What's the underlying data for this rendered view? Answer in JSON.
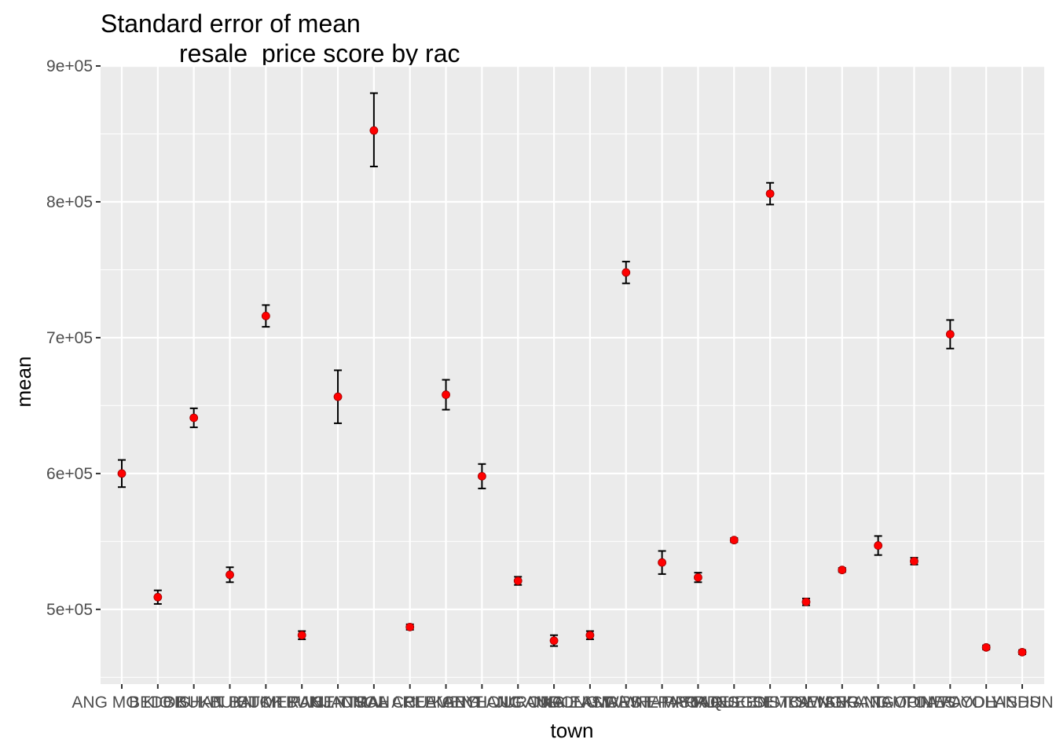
{
  "chart_data": {
    "type": "scatter",
    "title_line1": "Standard error of mean",
    "title_line2": "resale_price score by rac",
    "xlabel": "town",
    "ylabel": "mean",
    "ylim": [
      445000,
      900000
    ],
    "y_ticks": [
      "5e+05",
      "6e+05",
      "7e+05",
      "8e+05",
      "9e+05"
    ],
    "y_tick_values": [
      500000,
      600000,
      700000,
      800000,
      900000
    ],
    "grid": true,
    "point_color": "#ff0000",
    "errorbar_color": "#000000",
    "panel_background": "#ebebeb",
    "points": [
      {
        "town": "ANG MO KIO",
        "mean": 600000,
        "lo": 590000,
        "hi": 610000
      },
      {
        "town": "BEDOK",
        "mean": 509000,
        "lo": 504000,
        "hi": 514000
      },
      {
        "town": "BISHAN",
        "mean": 641000,
        "lo": 634000,
        "hi": 648000
      },
      {
        "town": "BUKIT BATOK",
        "mean": 525500,
        "lo": 520000,
        "hi": 531000
      },
      {
        "town": "BUKIT MERAH",
        "mean": 716000,
        "lo": 708000,
        "hi": 724000
      },
      {
        "town": "BUKIT PANJANG",
        "mean": 481000,
        "lo": 478000,
        "hi": 484000
      },
      {
        "town": "BUKIT TIMAH",
        "mean": 656500,
        "lo": 637000,
        "hi": 676000
      },
      {
        "town": "CENTRAL AREA",
        "mean": 852500,
        "lo": 826000,
        "hi": 880000
      },
      {
        "town": "CHOA CHU KANG",
        "mean": 487000,
        "lo": 485000,
        "hi": 489000
      },
      {
        "town": "CLEMENTI",
        "mean": 658000,
        "lo": 647000,
        "hi": 669000
      },
      {
        "town": "GEYLANG",
        "mean": 598000,
        "lo": 589000,
        "hi": 607000
      },
      {
        "town": "HOUGANG",
        "mean": 521000,
        "lo": 518000,
        "hi": 524000
      },
      {
        "town": "JURONG EAST",
        "mean": 477000,
        "lo": 473000,
        "hi": 481000
      },
      {
        "town": "JURONG WEST",
        "mean": 481000,
        "lo": 478000,
        "hi": 484000
      },
      {
        "town": "KALLANG/WHAMPOA",
        "mean": 748000,
        "lo": 740000,
        "hi": 756000
      },
      {
        "town": "MARINE PARADE",
        "mean": 534500,
        "lo": 526000,
        "hi": 543000
      },
      {
        "town": "PASIR RIS",
        "mean": 523500,
        "lo": 520000,
        "hi": 527000
      },
      {
        "town": "PUNGGOL",
        "mean": 551000,
        "lo": 549500,
        "hi": 552500
      },
      {
        "town": "QUEENSTOWN",
        "mean": 806000,
        "lo": 798000,
        "hi": 814000
      },
      {
        "town": "SEMBAWANG",
        "mean": 505500,
        "lo": 503000,
        "hi": 508000
      },
      {
        "town": "SENGKANG",
        "mean": 529000,
        "lo": 527500,
        "hi": 530500
      },
      {
        "town": "SERANGOON",
        "mean": 547000,
        "lo": 540000,
        "hi": 554000
      },
      {
        "town": "TAMPINES",
        "mean": 535500,
        "lo": 533000,
        "hi": 538000
      },
      {
        "town": "TOA PAYOH",
        "mean": 702500,
        "lo": 692000,
        "hi": 713000
      },
      {
        "town": "WOODLANDS",
        "mean": 472000,
        "lo": 470500,
        "hi": 473500
      },
      {
        "town": "YISHUN",
        "mean": 468500,
        "lo": 467000,
        "hi": 470000
      }
    ]
  }
}
